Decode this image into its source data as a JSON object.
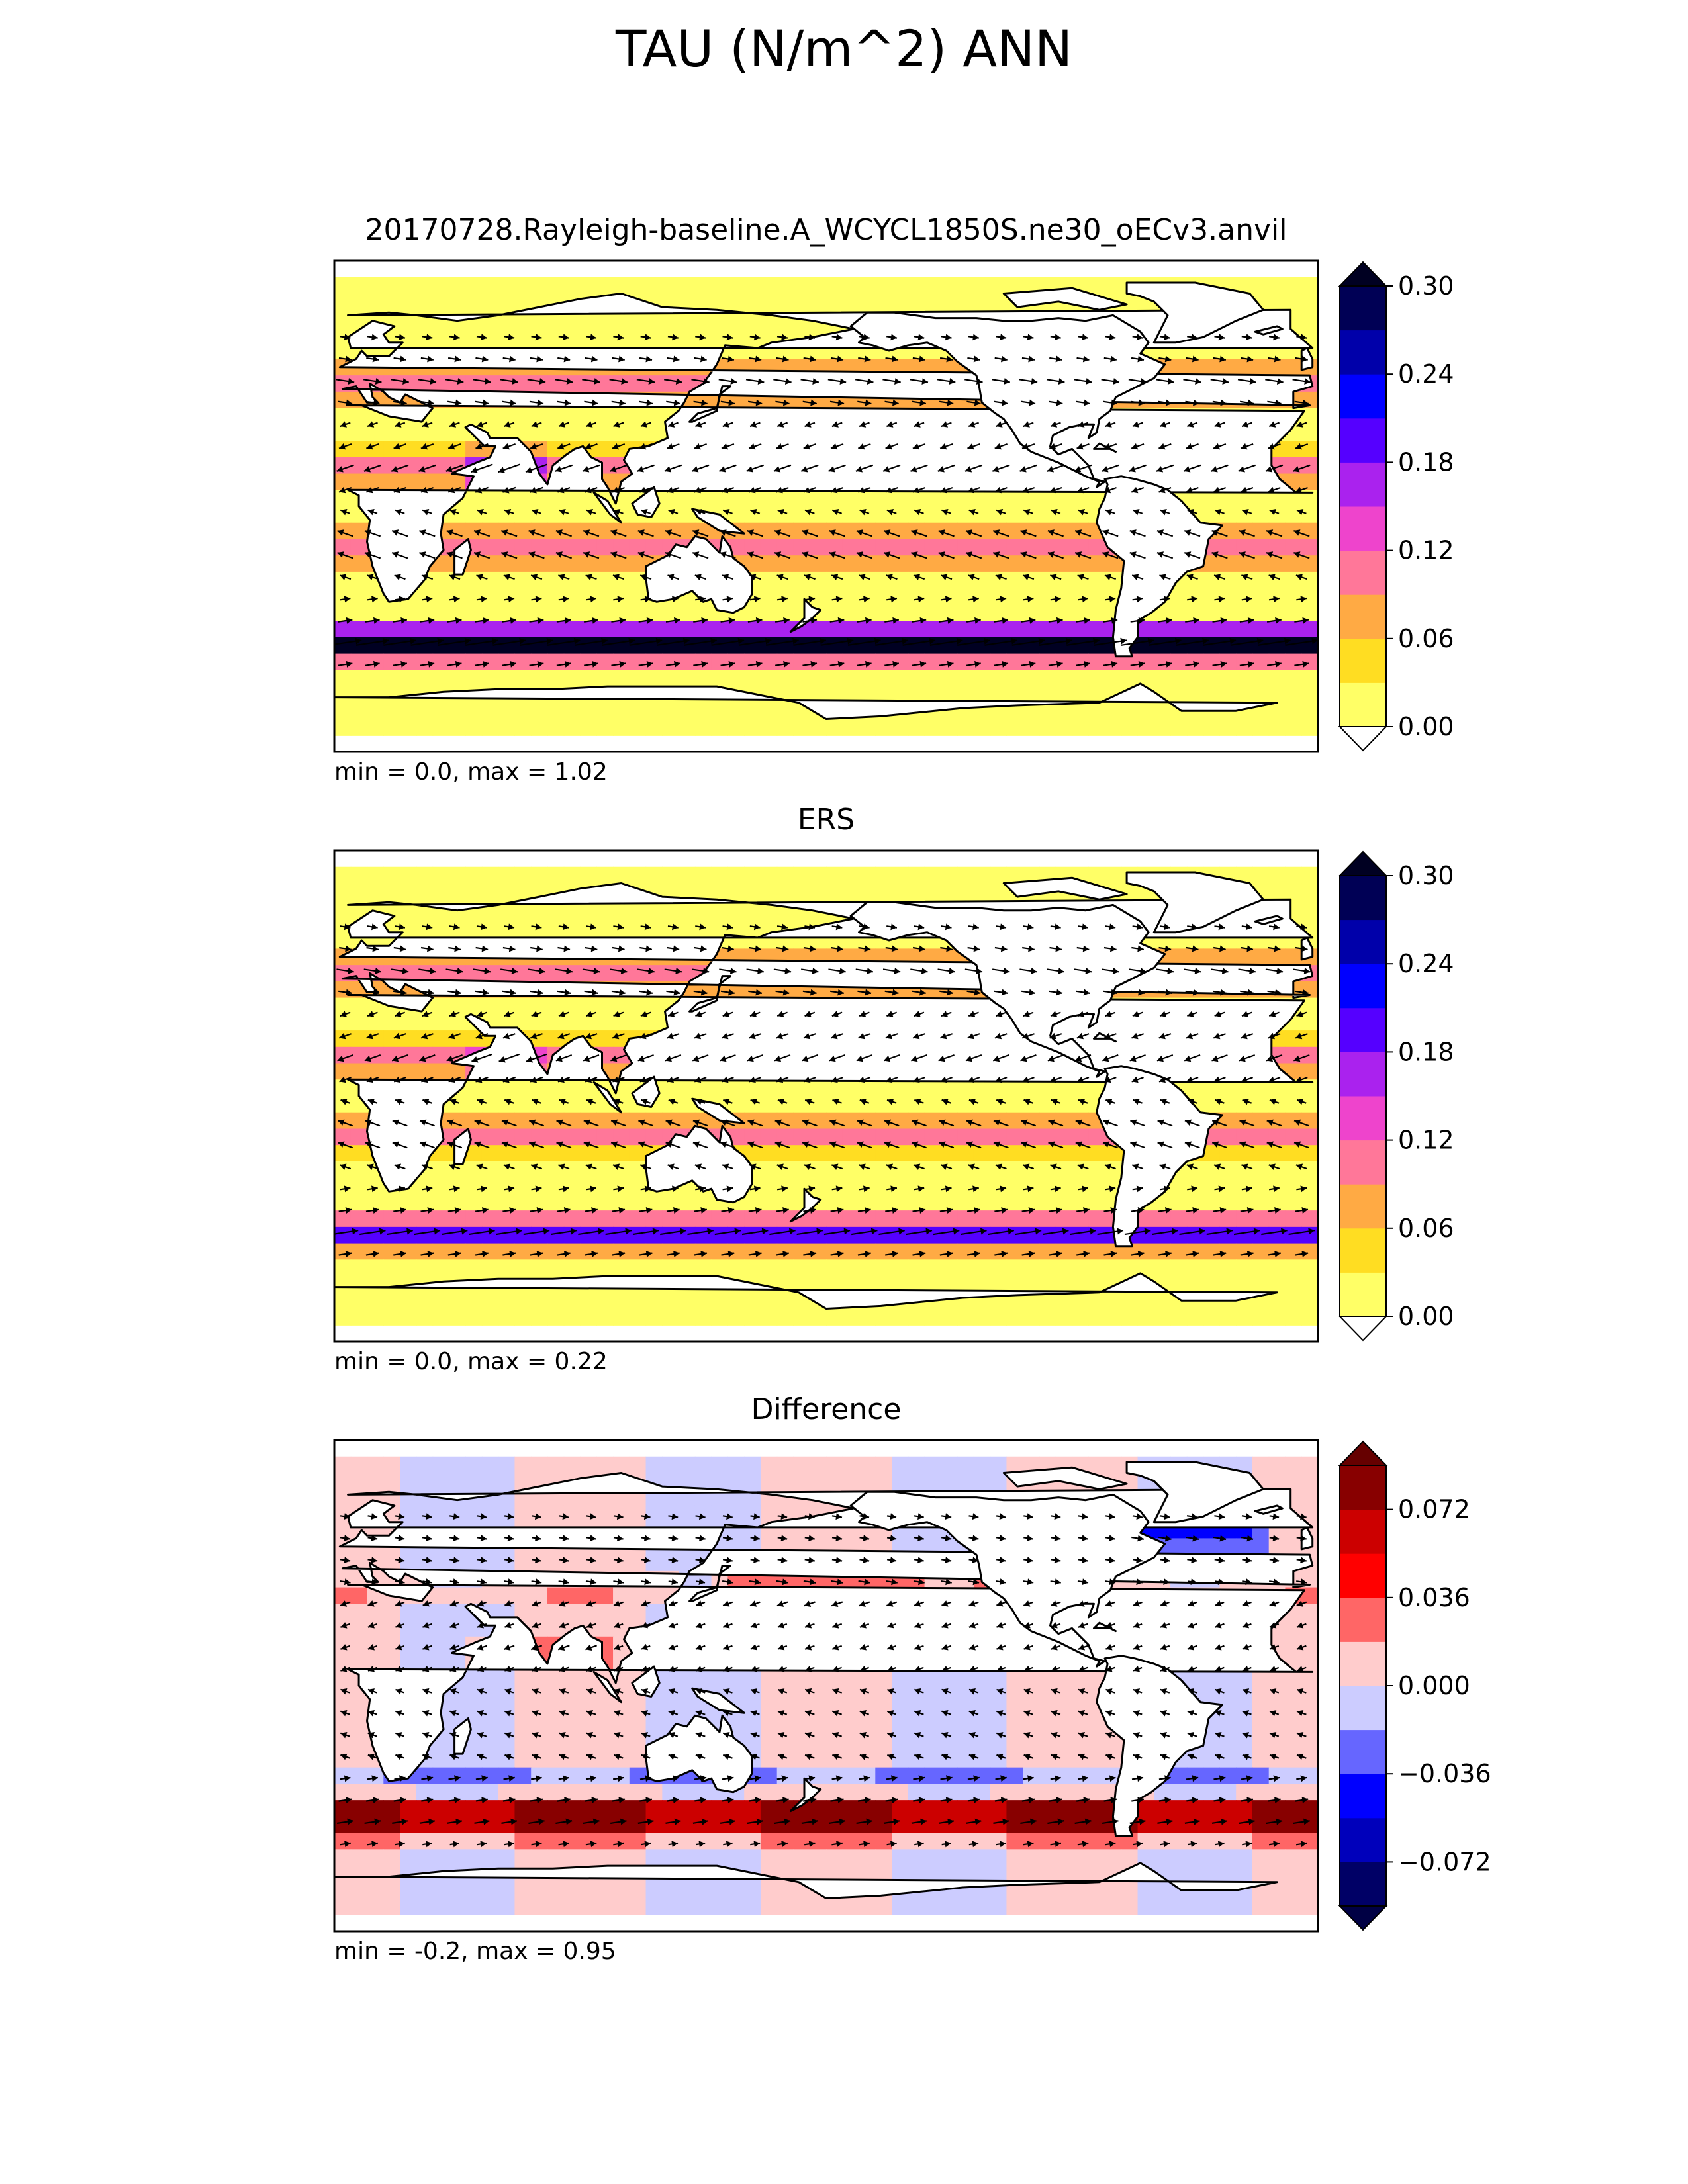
{
  "figure": {
    "title": "TAU (N/m^2) ANN"
  },
  "chart_data": [
    {
      "type": "heatmap",
      "subtype": "contour map with wind-stress vectors",
      "title": "20170728.Rayleigh-baseline.A_WCYCL1850S.ne30_oECv3.anvil",
      "stats": "min = 0.0, max = 1.02",
      "min": 0.0,
      "max": 1.02,
      "colorbar": {
        "levels": [
          0.0,
          0.03,
          0.06,
          0.09,
          0.12,
          0.15,
          0.18,
          0.21,
          0.24,
          0.27,
          0.3
        ],
        "tick_values": [
          0.0,
          0.06,
          0.12,
          0.18,
          0.24,
          0.3
        ],
        "tick_labels": [
          "0.00",
          "0.06",
          "0.12",
          "0.18",
          "0.24",
          "0.30"
        ],
        "colors": [
          "#ffff66",
          "#ffdd22",
          "#ffaa44",
          "#ff7799",
          "#ee44cc",
          "#aa22ee",
          "#5500ff",
          "#0000ff",
          "#0000aa",
          "#000055"
        ],
        "under_color": "#ffffff",
        "over_color": "#000022",
        "extend": "both"
      },
      "fields": {
        "trade_winds_max": 0.12,
        "southern_ocean_max": 0.3,
        "midlat_westerlies_north": 0.1
      }
    },
    {
      "type": "heatmap",
      "subtype": "contour map with wind-stress vectors",
      "title": "ERS",
      "stats": "min = 0.0, max = 0.22",
      "min": 0.0,
      "max": 0.22,
      "colorbar": {
        "levels": [
          0.0,
          0.03,
          0.06,
          0.09,
          0.12,
          0.15,
          0.18,
          0.21,
          0.24,
          0.27,
          0.3
        ],
        "tick_values": [
          0.0,
          0.06,
          0.12,
          0.18,
          0.24,
          0.3
        ],
        "tick_labels": [
          "0.00",
          "0.06",
          "0.12",
          "0.18",
          "0.24",
          "0.30"
        ],
        "colors": [
          "#ffff66",
          "#ffdd22",
          "#ffaa44",
          "#ff7799",
          "#ee44cc",
          "#aa22ee",
          "#5500ff",
          "#0000ff",
          "#0000aa",
          "#000055"
        ],
        "under_color": "#ffffff",
        "over_color": "#000022",
        "extend": "both"
      },
      "fields": {
        "trade_winds_max": 0.1,
        "southern_ocean_max": 0.2,
        "midlat_westerlies_north": 0.09
      }
    },
    {
      "type": "heatmap",
      "subtype": "contour map with wind-stress difference vectors",
      "title": "Difference",
      "stats": "min = -0.2, max = 0.95",
      "min": -0.2,
      "max": 0.95,
      "colorbar": {
        "levels": [
          -0.09,
          -0.072,
          -0.054,
          -0.036,
          -0.018,
          0.0,
          0.018,
          0.036,
          0.054,
          0.072,
          0.09
        ],
        "tick_values": [
          -0.072,
          -0.036,
          0.0,
          0.036,
          0.072
        ],
        "tick_labels": [
          "−0.072",
          "−0.036",
          "0.000",
          "0.036",
          "0.072"
        ],
        "colors": [
          "#000066",
          "#0000bb",
          "#0000ff",
          "#6666ff",
          "#ccccff",
          "#ffcccc",
          "#ff6666",
          "#ff0000",
          "#cc0000",
          "#880000"
        ],
        "under_color": "#000044",
        "over_color": "#660000",
        "extend": "both"
      },
      "fields": {
        "southern_ocean_diff": 0.09,
        "tropical_diff": 0.01,
        "north_atlantic_diff": -0.04
      }
    }
  ]
}
